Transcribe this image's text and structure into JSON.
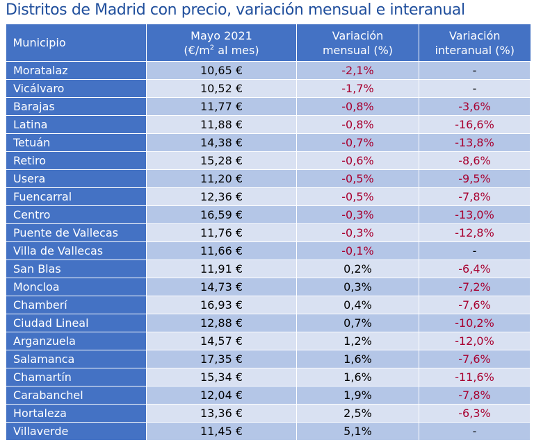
{
  "title": "Distritos de Madrid con precio, variación mensual e interanual",
  "chart_data": {
    "type": "table",
    "title": "Distritos de Madrid con precio, variación mensual e interanual",
    "columns": [
      {
        "label": "Municipio"
      },
      {
        "line1": "Mayo 2021",
        "line2_pre": "(€/m",
        "line2_sup": "2",
        "line2_post": " al mes)"
      },
      {
        "line1": "Variación",
        "line2": "mensual (%)"
      },
      {
        "line1": "Variación",
        "line2": "interanual (%)"
      }
    ],
    "rows": [
      {
        "municipio": "Moratalaz",
        "precio": "10,65 €",
        "mensual": "-2,1%",
        "interanual": "-"
      },
      {
        "municipio": "Vicálvaro",
        "precio": "10,52 €",
        "mensual": "-1,7%",
        "interanual": "-"
      },
      {
        "municipio": "Barajas",
        "precio": "11,77 €",
        "mensual": "-0,8%",
        "interanual": "-3,6%"
      },
      {
        "municipio": "Latina",
        "precio": "11,88 €",
        "mensual": "-0,8%",
        "interanual": "-16,6%"
      },
      {
        "municipio": "Tetuán",
        "precio": "14,38 €",
        "mensual": "-0,7%",
        "interanual": "-13,8%"
      },
      {
        "municipio": "Retiro",
        "precio": "15,28 €",
        "mensual": "-0,6%",
        "interanual": "-8,6%"
      },
      {
        "municipio": "Usera",
        "precio": "11,20 €",
        "mensual": "-0,5%",
        "interanual": "-9,5%"
      },
      {
        "municipio": "Fuencarral",
        "precio": "12,36 €",
        "mensual": "-0,5%",
        "interanual": "-7,8%"
      },
      {
        "municipio": "Centro",
        "precio": "16,59 €",
        "mensual": "-0,3%",
        "interanual": "-13,0%"
      },
      {
        "municipio": "Puente de Vallecas",
        "precio": "11,76 €",
        "mensual": "-0,3%",
        "interanual": "-12,8%"
      },
      {
        "municipio": "Villa de Vallecas",
        "precio": "11,66 €",
        "mensual": "-0,1%",
        "interanual": "-"
      },
      {
        "municipio": "San Blas",
        "precio": "11,91 €",
        "mensual": "0,2%",
        "interanual": "-6,4%"
      },
      {
        "municipio": "Moncloa",
        "precio": "14,73 €",
        "mensual": "0,3%",
        "interanual": "-7,2%"
      },
      {
        "municipio": "Chamberí",
        "precio": "16,93 €",
        "mensual": "0,4%",
        "interanual": "-7,6%"
      },
      {
        "municipio": "Ciudad Lineal",
        "precio": "12,88 €",
        "mensual": "0,7%",
        "interanual": "-10,2%"
      },
      {
        "municipio": "Arganzuela",
        "precio": "14,57 €",
        "mensual": "1,2%",
        "interanual": "-12,0%"
      },
      {
        "municipio": "Salamanca",
        "precio": "17,35 €",
        "mensual": "1,6%",
        "interanual": "-7,6%"
      },
      {
        "municipio": "Chamartín",
        "precio": "15,34 €",
        "mensual": "1,6%",
        "interanual": "-11,6%"
      },
      {
        "municipio": "Carabanchel",
        "precio": "12,04 €",
        "mensual": "1,9%",
        "interanual": "-7,8%"
      },
      {
        "municipio": "Hortaleza",
        "precio": "13,36 €",
        "mensual": "2,5%",
        "interanual": "-6,3%"
      },
      {
        "municipio": "Villaverde",
        "precio": "11,45 €",
        "mensual": "5,1%",
        "interanual": "-"
      }
    ]
  },
  "colors": {
    "title": "#1f4e9c",
    "header_bg": "#4472c4",
    "row_band_dark": "#b4c6e7",
    "row_band_light": "#d9e1f2",
    "negative_text": "#a8002f"
  }
}
